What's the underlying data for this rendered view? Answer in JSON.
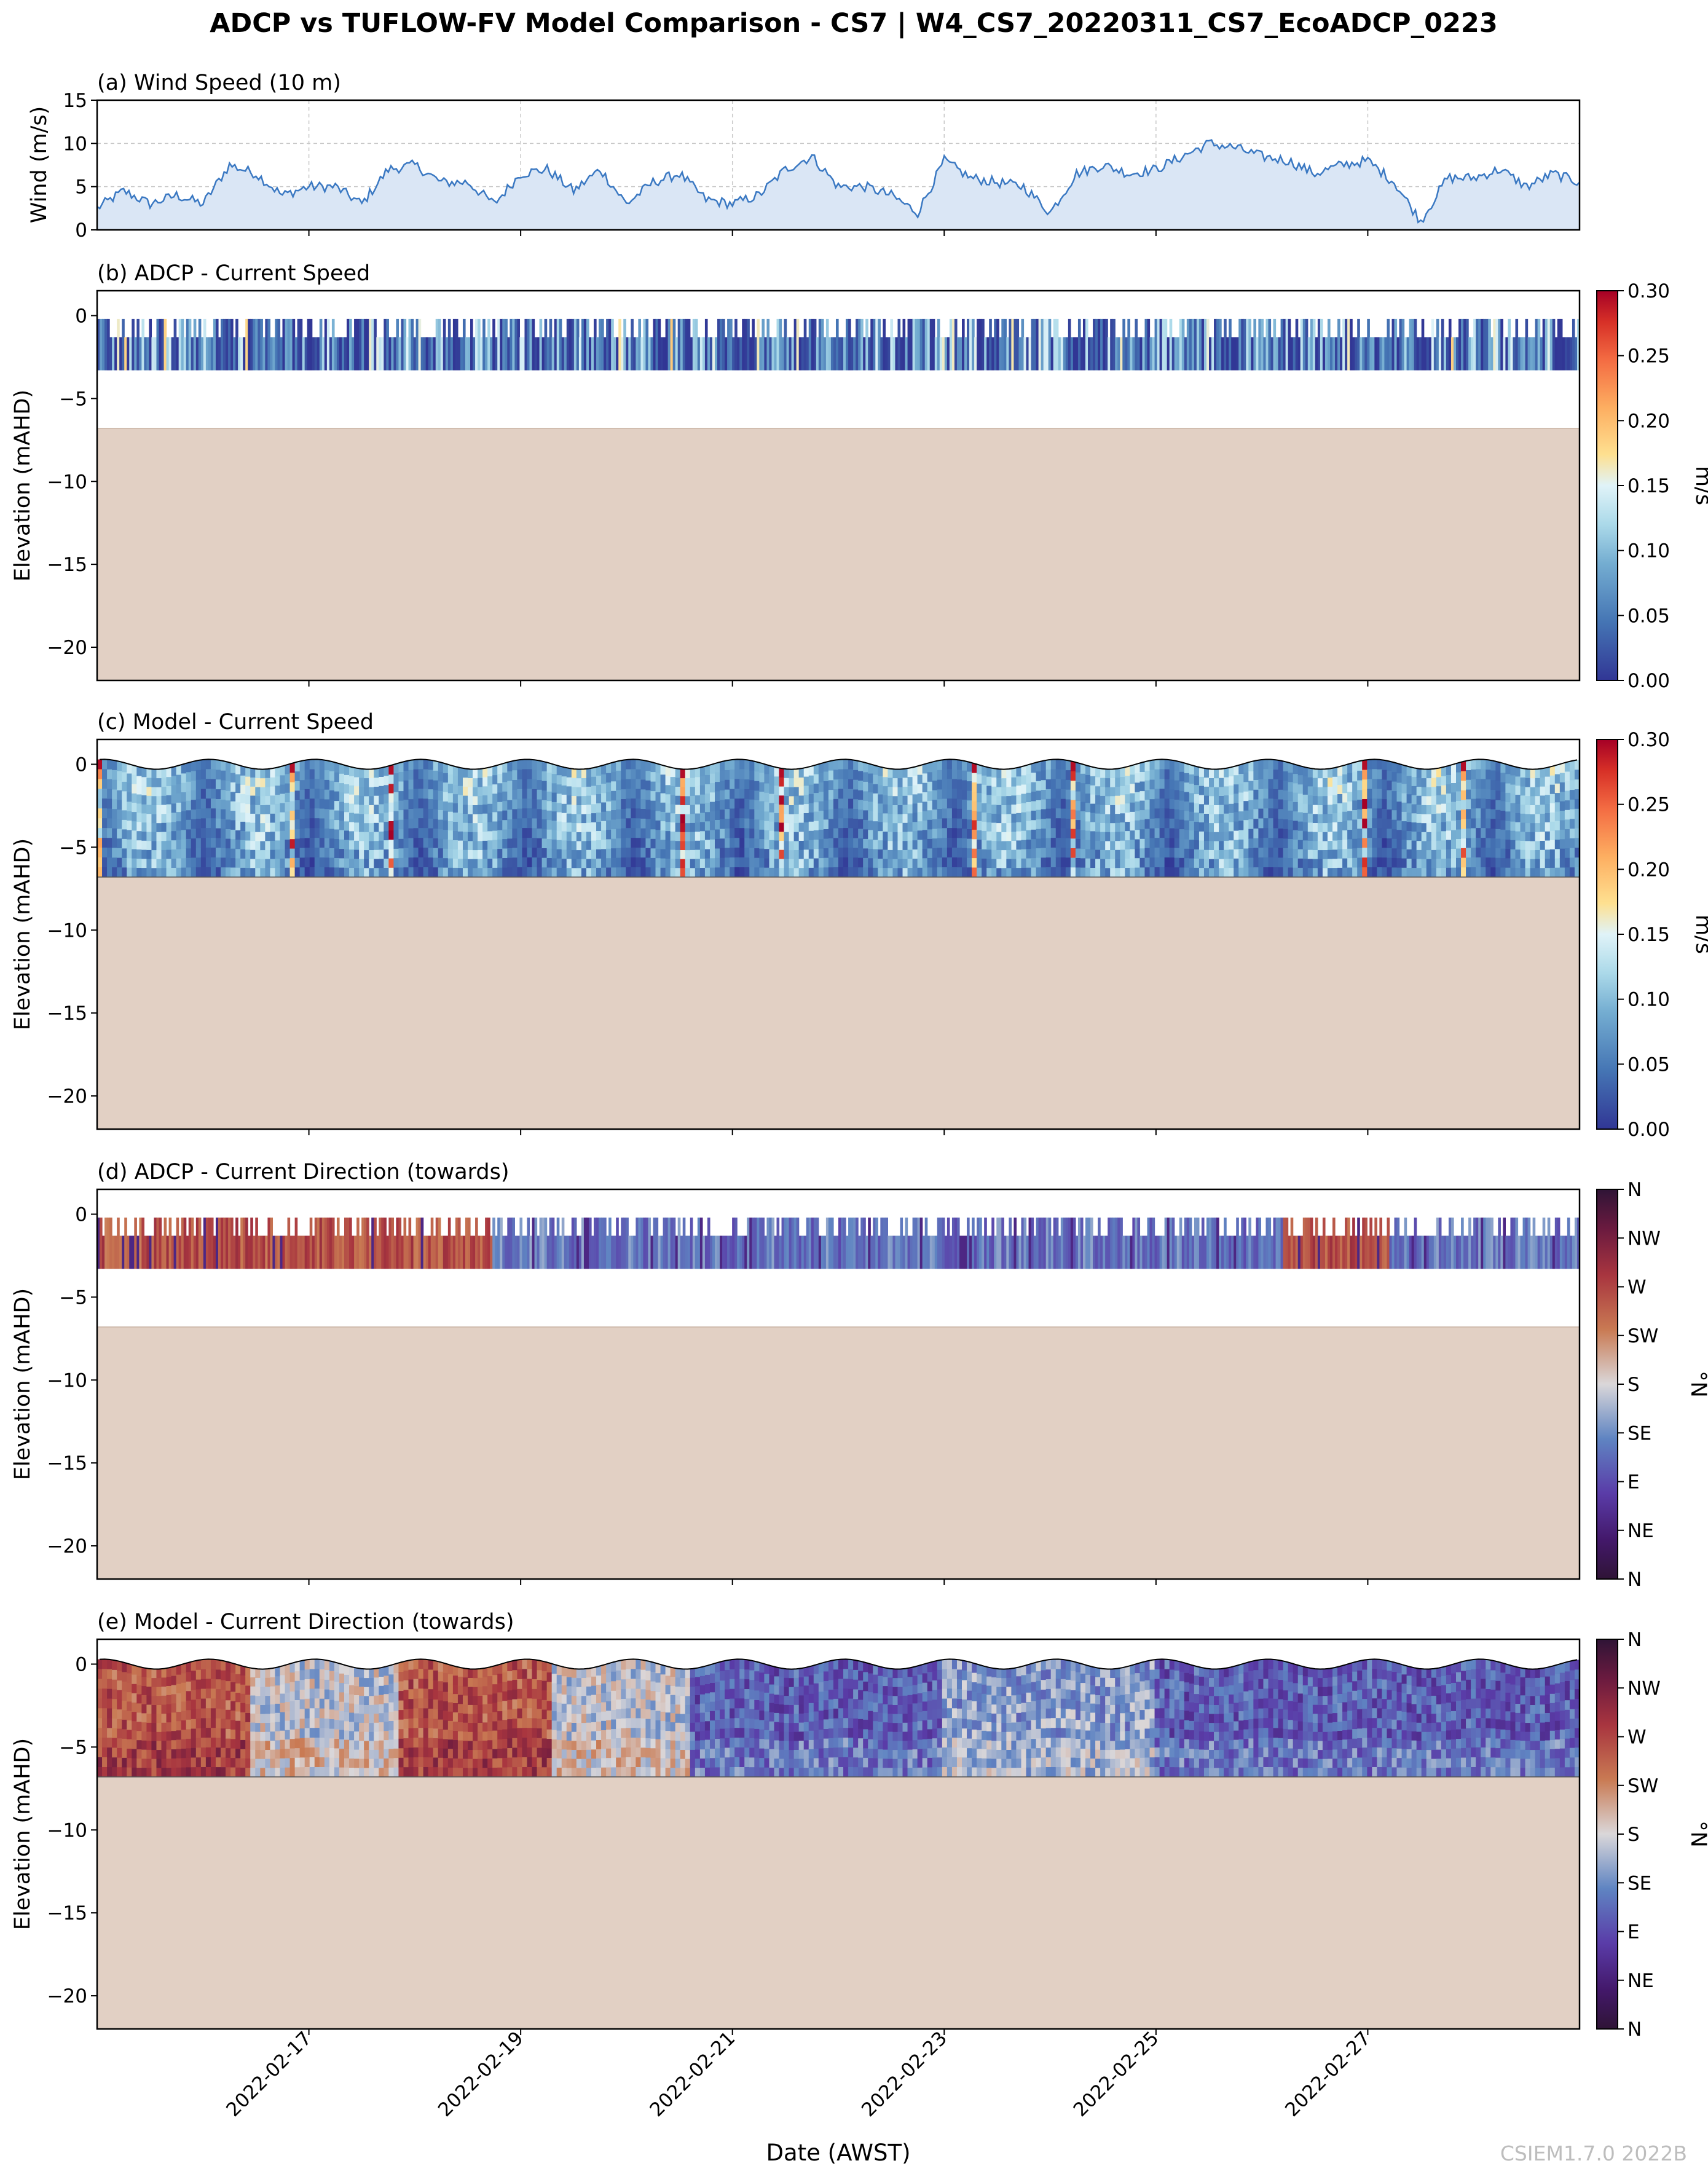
{
  "figure": {
    "title": "ADCP vs TUFLOW-FV Model Comparison - CS7 | W4_CS7_20220311_CS7_EcoADCP_0223",
    "xlabel": "Date (AWST)",
    "watermark": "CSIEM1.7.0 2022B"
  },
  "chart_data": [
    {
      "id": "a",
      "type": "area",
      "title": "(a) Wind Speed (10 m)",
      "ylabel": "Wind (m/s)",
      "ylim": [
        0,
        15
      ],
      "yticks": [
        "0",
        "5",
        "10",
        "15"
      ],
      "xlim_days": [
        0,
        14
      ],
      "x_days": [
        0,
        0.25,
        0.5,
        0.75,
        1,
        1.25,
        1.5,
        1.75,
        2,
        2.25,
        2.5,
        2.75,
        3,
        3.25,
        3.5,
        3.75,
        4,
        4.25,
        4.5,
        4.75,
        5,
        5.25,
        5.5,
        5.75,
        6,
        6.25,
        6.5,
        6.75,
        7,
        7.25,
        7.5,
        7.75,
        8,
        8.25,
        8.5,
        8.75,
        9,
        9.25,
        9.5,
        9.75,
        10,
        10.25,
        10.5,
        10.75,
        11,
        11.25,
        11.5,
        11.75,
        12,
        12.25,
        12.5,
        12.75,
        13,
        13.25,
        13.5,
        13.75,
        14
      ],
      "values": [
        2.5,
        4.5,
        3,
        4,
        3,
        7.5,
        6.5,
        4,
        5,
        5,
        3,
        7,
        7.5,
        5.5,
        5.5,
        3,
        6.5,
        7,
        4.5,
        7,
        3,
        5.5,
        6.5,
        3.5,
        3,
        4,
        7,
        8.5,
        5,
        5,
        4,
        2,
        8,
        6,
        5.5,
        5,
        2,
        6.5,
        7.5,
        6.5,
        7,
        8.5,
        10,
        9.5,
        8.5,
        8,
        6.5,
        7.5,
        8,
        5.5,
        1,
        6,
        6,
        7,
        5,
        6.5,
        5.5
      ],
      "xtick_labels": [
        "2022-02-17",
        "2022-02-19",
        "2022-02-21",
        "2022-02-23",
        "2022-02-25",
        "2022-02-27"
      ],
      "xtick_days": [
        2,
        4,
        6,
        8,
        10,
        12
      ],
      "color": "#3a78c2",
      "fill": "#dae6f5"
    },
    {
      "id": "b",
      "type": "heatmap",
      "title": "(b) ADCP - Current Speed",
      "ylabel": "Elevation (mAHD)",
      "ylim": [
        -22,
        1.5
      ],
      "yticks": [
        "0",
        "-5",
        "-10",
        "-15",
        "-20"
      ],
      "bed_level": -6.8,
      "data_top": -0.2,
      "data_bottom": -3.3,
      "colorbar": {
        "label": "m/s",
        "min": 0,
        "max": 0.3,
        "ticks": [
          "0.00",
          "0.05",
          "0.10",
          "0.15",
          "0.20",
          "0.25",
          "0.30"
        ],
        "cmap": "RdYlBu_r"
      }
    },
    {
      "id": "c",
      "type": "heatmap",
      "title": "(c) Model - Current Speed",
      "ylabel": "Elevation (mAHD)",
      "ylim": [
        -22,
        1.5
      ],
      "yticks": [
        "0",
        "-5",
        "-10",
        "-15",
        "-20"
      ],
      "bed_level": -6.8,
      "surface_mean": 0,
      "surface_amplitude": 0.3,
      "colorbar": {
        "label": "m/s",
        "min": 0,
        "max": 0.3,
        "ticks": [
          "0.00",
          "0.05",
          "0.10",
          "0.15",
          "0.20",
          "0.25",
          "0.30"
        ],
        "cmap": "RdYlBu_r"
      }
    },
    {
      "id": "d",
      "type": "heatmap",
      "title": "(d) ADCP - Current Direction (towards)",
      "ylabel": "Elevation (mAHD)",
      "ylim": [
        -22,
        1.5
      ],
      "yticks": [
        "0",
        "-5",
        "-10",
        "-15",
        "-20"
      ],
      "bed_level": -6.8,
      "data_top": -0.2,
      "data_bottom": -3.3,
      "colorbar": {
        "label": "°N",
        "min": 0,
        "max": 360,
        "ticks": [
          "N",
          "NE",
          "E",
          "SE",
          "S",
          "SW",
          "W",
          "NW",
          "N"
        ],
        "cmap": "twilight_shifted"
      }
    },
    {
      "id": "e",
      "type": "heatmap",
      "title": "(e) Model - Current Direction (towards)",
      "ylabel": "Elevation (mAHD)",
      "ylim": [
        -22,
        1.5
      ],
      "yticks": [
        "0",
        "-5",
        "-10",
        "-15",
        "-20"
      ],
      "bed_level": -6.8,
      "surface_mean": 0,
      "surface_amplitude": 0.3,
      "colorbar": {
        "label": "°N",
        "min": 0,
        "max": 360,
        "ticks": [
          "N",
          "NE",
          "E",
          "SE",
          "S",
          "SW",
          "W",
          "NW",
          "N"
        ],
        "cmap": "twilight_shifted"
      }
    }
  ],
  "colors": {
    "bed": "#e2d0c4",
    "axis": "#000000",
    "grid": "#c8c8c8"
  }
}
